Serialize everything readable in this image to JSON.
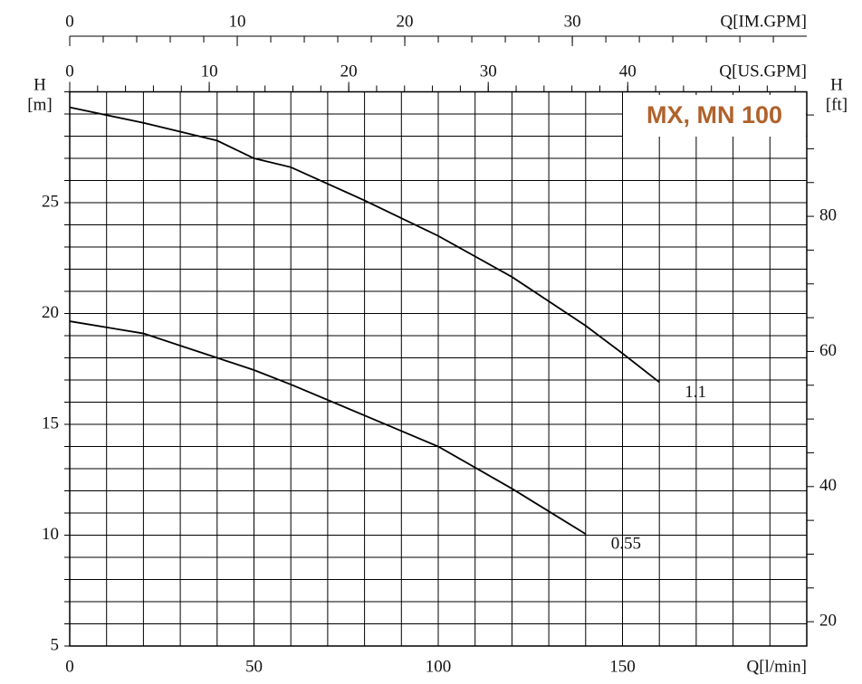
{
  "chart_data": {
    "type": "line",
    "title": "MX, MN 100",
    "x_label": "Q[l/min]",
    "y_label": "H",
    "y_unit": "[m]",
    "y2_label": "H",
    "y2_unit": "[ft]",
    "x": [
      0,
      20,
      40,
      50,
      60,
      80,
      100,
      120,
      140,
      150,
      160
    ],
    "series": [
      {
        "name": "1.1",
        "color": "#000000",
        "values": [
          29.3,
          28.6,
          27.8,
          27.0,
          26.6,
          25.1,
          23.5,
          21.65,
          19.45,
          18.2,
          16.9
        ]
      },
      {
        "name": "0.55",
        "color": "#000000",
        "values": [
          19.65,
          19.1,
          18.0,
          17.45,
          16.8,
          15.4,
          14.0,
          12.1,
          10.05,
          null,
          null
        ]
      }
    ],
    "xlim": [
      0,
      200
    ],
    "xticks": [
      0,
      50,
      100,
      150
    ],
    "xgrid": [
      0,
      10,
      20,
      30,
      40,
      50,
      60,
      70,
      80,
      90,
      100,
      110,
      120,
      130,
      140,
      150,
      160,
      170,
      180,
      190,
      200
    ],
    "ylim": [
      5,
      30
    ],
    "yticks": [
      5,
      10,
      15,
      20,
      25
    ],
    "ygrid": [
      5,
      6,
      7,
      8,
      9,
      10,
      11,
      12,
      13,
      14,
      15,
      16,
      17,
      18,
      19,
      20,
      21,
      22,
      23,
      24,
      25,
      26,
      27,
      28,
      29,
      30
    ],
    "y2lim": [
      16.404,
      98.425
    ],
    "y2ticks": [
      20,
      40,
      60,
      80
    ],
    "y2minor": [
      20,
      25,
      30,
      35,
      40,
      45,
      50,
      55,
      60,
      65,
      70,
      75,
      80,
      85,
      90,
      95
    ],
    "top_axes": [
      {
        "label": "Q[US.GPM]",
        "xlim": [
          0,
          52.834
        ],
        "xticks": [
          0,
          10,
          20,
          30,
          40
        ],
        "minor": [
          0,
          2,
          4,
          6,
          8,
          10,
          12,
          14,
          16,
          18,
          20,
          22,
          24,
          26,
          28,
          30,
          32,
          34,
          36,
          38,
          40,
          42,
          44,
          46,
          48,
          50,
          52
        ]
      },
      {
        "label": "Q[IM.GPM]",
        "xlim": [
          0,
          43.994
        ],
        "xticks": [
          0,
          10,
          20,
          30
        ],
        "minor": [
          0,
          2,
          4,
          6,
          8,
          10,
          12,
          14,
          16,
          18,
          20,
          22,
          24,
          26,
          28,
          30,
          32,
          34,
          36,
          38,
          40,
          42
        ]
      }
    ],
    "grid": true,
    "title_color": "#b0622c"
  }
}
